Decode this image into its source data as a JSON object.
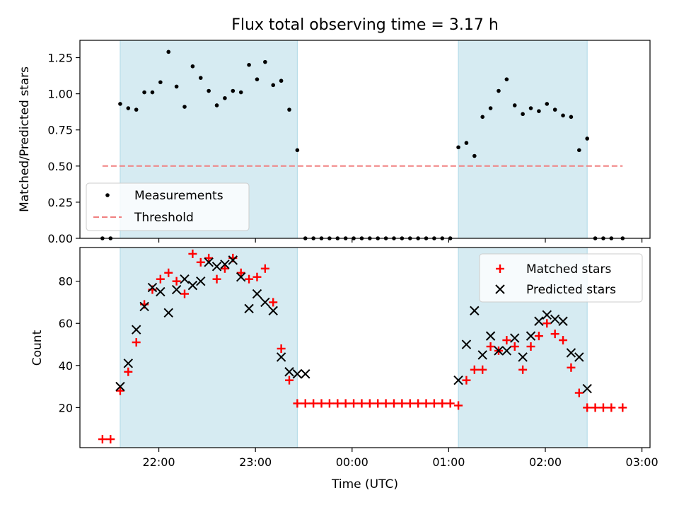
{
  "chart_data": {
    "title": "Flux total observing time = 3.17 h",
    "xlabel": "Time (UTC)",
    "x_ticks": [
      "22:00",
      "23:00",
      "00:00",
      "01:00",
      "02:00",
      "03:00"
    ],
    "x_tick_minutes": [
      -120,
      -60,
      0,
      60,
      120,
      180
    ],
    "x_range_minutes": [
      -169,
      185
    ],
    "shaded_intervals_minutes": [
      [
        -144,
        -34
      ],
      [
        66,
        146
      ]
    ],
    "colors": {
      "shade": "#add8e6",
      "measurements": "#000000",
      "threshold": "#f08080",
      "matched": "#ff0000",
      "predicted": "#000000"
    },
    "panels": [
      {
        "type": "scatter",
        "ylabel": "Matched/Predicted stars",
        "ylim": [
          0,
          1.37
        ],
        "y_ticks": [
          "0.00",
          "0.25",
          "0.50",
          "0.75",
          "1.00",
          "1.25"
        ],
        "y_tick_values": [
          0,
          0.25,
          0.5,
          0.75,
          1.0,
          1.25
        ],
        "legend": {
          "position": "lower-left",
          "entries": [
            "Measurements",
            "Threshold"
          ]
        },
        "threshold": {
          "y": 0.5,
          "x_start": -155,
          "x_end": 168
        },
        "series": [
          {
            "name": "Measurements",
            "marker": "dot",
            "x": [
              -155,
              -150,
              -144,
              -139,
              -134,
              -129,
              -124,
              -119,
              -114,
              -109,
              -104,
              -99,
              -94,
              -89,
              -84,
              -79,
              -74,
              -69,
              -64,
              -59,
              -54,
              -49,
              -44,
              -39,
              -34,
              -29,
              -24,
              -19,
              -14,
              -9,
              -4,
              1,
              6,
              11,
              16,
              21,
              26,
              31,
              36,
              41,
              46,
              51,
              56,
              61,
              66,
              71,
              76,
              81,
              86,
              91,
              96,
              101,
              106,
              111,
              116,
              121,
              126,
              131,
              136,
              141,
              146,
              151,
              156,
              161,
              168
            ],
            "y": [
              0,
              0,
              0.93,
              0.9,
              0.89,
              1.01,
              1.01,
              1.08,
              1.29,
              1.05,
              0.91,
              1.19,
              1.11,
              1.02,
              0.92,
              0.97,
              1.02,
              1.01,
              1.2,
              1.1,
              1.22,
              1.06,
              1.09,
              0.89,
              0.61,
              0,
              0,
              0,
              0,
              0,
              0,
              0,
              0,
              0,
              0,
              0,
              0,
              0,
              0,
              0,
              0,
              0,
              0,
              0,
              0.63,
              0.66,
              0.57,
              0.84,
              0.9,
              1.02,
              1.1,
              0.92,
              0.86,
              0.9,
              0.88,
              0.93,
              0.89,
              0.85,
              0.84,
              0.61,
              0.69,
              0,
              0,
              0,
              0
            ]
          }
        ]
      },
      {
        "type": "scatter",
        "ylabel": "Count",
        "ylim": [
          1,
          96
        ],
        "y_ticks": [
          "20",
          "40",
          "60",
          "80"
        ],
        "y_tick_values": [
          20,
          40,
          60,
          80
        ],
        "legend": {
          "position": "upper-right",
          "entries": [
            "Matched stars",
            "Predicted stars"
          ]
        },
        "series": [
          {
            "name": "Matched stars",
            "marker": "plus",
            "x": [
              -155,
              -150,
              -144,
              -139,
              -134,
              -129,
              -124,
              -119,
              -114,
              -109,
              -104,
              -99,
              -94,
              -89,
              -84,
              -79,
              -74,
              -69,
              -64,
              -59,
              -54,
              -49,
              -44,
              -39,
              -34,
              -29,
              -24,
              -19,
              -14,
              -9,
              -4,
              1,
              6,
              11,
              16,
              21,
              26,
              31,
              36,
              41,
              46,
              51,
              56,
              61,
              66,
              71,
              76,
              81,
              86,
              91,
              96,
              101,
              106,
              111,
              116,
              121,
              126,
              131,
              136,
              141,
              146,
              151,
              156,
              161,
              168
            ],
            "y": [
              5,
              5,
              28,
              37,
              51,
              69,
              76,
              81,
              84,
              80,
              74,
              93,
              89,
              91,
              81,
              86,
              91,
              84,
              81,
              82,
              86,
              70,
              48,
              33,
              22,
              22,
              22,
              22,
              22,
              22,
              22,
              22,
              22,
              22,
              22,
              22,
              22,
              22,
              22,
              22,
              22,
              22,
              22,
              22,
              21,
              33,
              38,
              38,
              49,
              47,
              52,
              49,
              38,
              49,
              54,
              60,
              55,
              52,
              39,
              27,
              20,
              20,
              20,
              20,
              20
            ]
          },
          {
            "name": "Predicted stars",
            "marker": "x",
            "x": [
              -144,
              -139,
              -134,
              -129,
              -124,
              -119,
              -114,
              -109,
              -104,
              -99,
              -94,
              -89,
              -84,
              -79,
              -74,
              -69,
              -64,
              -59,
              -54,
              -49,
              -44,
              -39,
              -34,
              -29,
              66,
              71,
              76,
              81,
              86,
              91,
              96,
              101,
              106,
              111,
              116,
              121,
              126,
              131,
              136,
              141,
              146
            ],
            "y": [
              30,
              41,
              57,
              68,
              77,
              75,
              65,
              76,
              81,
              78,
              80,
              89,
              87,
              88,
              90,
              82,
              67,
              74,
              70,
              66,
              44,
              37,
              36,
              36,
              33,
              50,
              66,
              45,
              54,
              47,
              47,
              53,
              44,
              54,
              61,
              64,
              62,
              61,
              46,
              44,
              29
            ]
          }
        ]
      }
    ]
  }
}
